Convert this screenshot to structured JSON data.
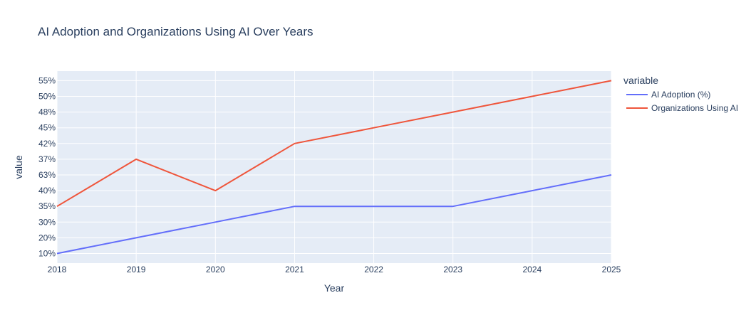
{
  "chart_data": {
    "type": "line",
    "title": "AI Adoption and Organizations Using AI Over Years",
    "xlabel": "Year",
    "ylabel": "value",
    "x": [
      "2018",
      "2019",
      "2020",
      "2021",
      "2022",
      "2023",
      "2024",
      "2025"
    ],
    "y_categories": [
      "10%",
      "20%",
      "30%",
      "35%",
      "40%",
      "63%",
      "37%",
      "42%",
      "45%",
      "48%",
      "50%",
      "55%"
    ],
    "legend_title": "variable",
    "legend_position": "right",
    "grid": true,
    "series": [
      {
        "name": "AI Adoption (%)",
        "color": "#636efa",
        "values": [
          "10%",
          "20%",
          "30%",
          "35%",
          "35%",
          "35%",
          "40%",
          "63%"
        ]
      },
      {
        "name": "Organizations Using AI",
        "color": "#ef553b",
        "values": [
          "35%",
          "37%",
          "40%",
          "42%",
          "45%",
          "48%",
          "50%",
          "55%"
        ]
      }
    ],
    "colors": {
      "plot_bg": "#e5ecf6",
      "grid": "#ffffff",
      "text": "#2a3f5f"
    }
  }
}
